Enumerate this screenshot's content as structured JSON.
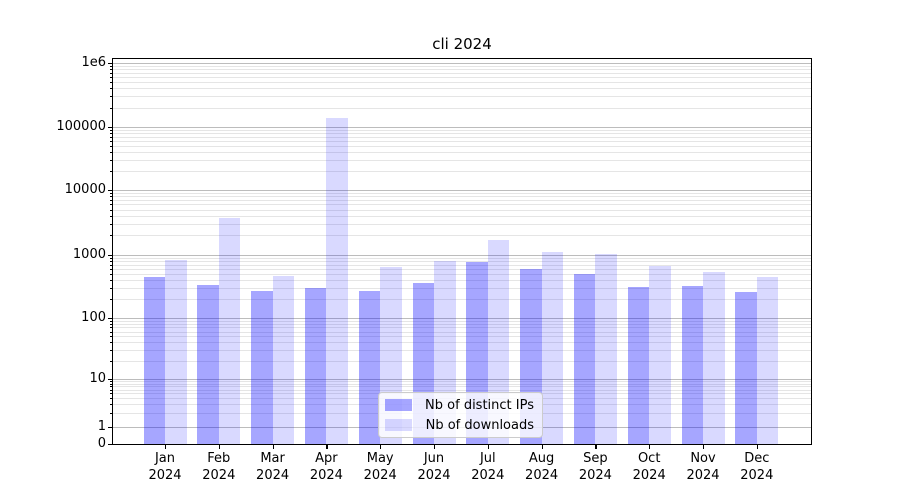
{
  "title": "cli 2024",
  "chart_data": {
    "type": "bar",
    "title": "cli 2024",
    "yscale": "log (symlog: linear segment below 1, '0' tick at axis bottom)",
    "ylim": [
      0,
      2000000
    ],
    "grid": "horizontal major and minor gridlines",
    "legend_position": "lower center",
    "categories": [
      "Jan 2024",
      "Feb 2024",
      "Mar 2024",
      "Apr 2024",
      "May 2024",
      "Jun 2024",
      "Jul 2024",
      "Aug 2024",
      "Sep 2024",
      "Oct 2024",
      "Nov 2024",
      "Dec 2024"
    ],
    "y_ticks": [
      {
        "label": "1e6",
        "value": 1000000
      },
      {
        "label": "100000",
        "value": 100000
      },
      {
        "label": "10000",
        "value": 10000
      },
      {
        "label": "1000",
        "value": 1000
      },
      {
        "label": "100",
        "value": 100
      },
      {
        "label": "10",
        "value": 10
      },
      {
        "label": "1",
        "value": 1
      },
      {
        "label": "0",
        "value": 0
      }
    ],
    "series": [
      {
        "name": "Nb of distinct IPs",
        "color": "rgba(0,0,255,0.35)",
        "values": [
          450,
          340,
          270,
          300,
          270,
          365,
          770,
          590,
          500,
          315,
          320,
          260
        ]
      },
      {
        "name": "Nb of downloads",
        "color": "rgba(0,0,255,0.15)",
        "values": [
          840,
          3700,
          460,
          140000,
          640,
          810,
          1690,
          1130,
          1020,
          670,
          540,
          440
        ]
      }
    ]
  },
  "colors": {
    "grid_major": "#bcbcbc",
    "grid_minor": "#e5e5e5",
    "spine": "#000000",
    "legend_border": "#cccccc",
    "legend_bg": "rgba(255,255,255,0.8)"
  }
}
